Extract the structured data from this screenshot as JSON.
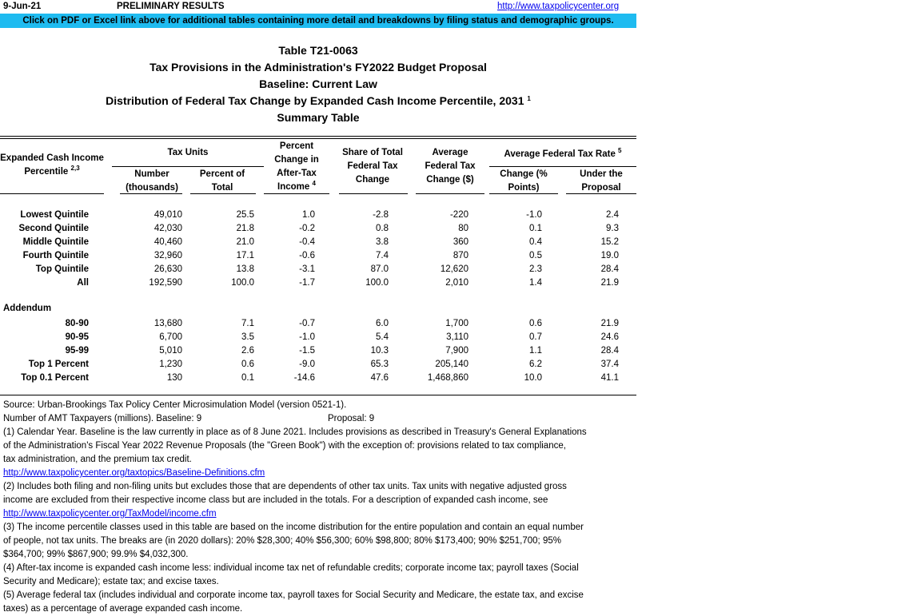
{
  "header": {
    "date": "9-Jun-21",
    "status": "PRELIMINARY RESULTS",
    "link": "http://www.taxpolicycenter.org"
  },
  "banner": "Click on PDF or Excel link above for additional tables containing more detail and breakdowns by filing status and demographic groups.",
  "titles": {
    "t1": "Table T21-0063",
    "t2": "Tax Provisions in the Administration's FY2022 Budget Proposal",
    "t3": "Baseline: Current Law",
    "t4": "Distribution of Federal Tax Change by Expanded Cash Income Percentile, 2031",
    "t4_sup": "1",
    "t5": "Summary Table"
  },
  "columns": {
    "percentile": "Expanded Cash Income",
    "percentile2": "Percentile",
    "percentile_sup": "2,3",
    "tax_units": "Tax Units",
    "number1": "Number",
    "number2": "(thousands)",
    "pct1": "Percent of",
    "pct2": "Total",
    "chg1": "Percent",
    "chg2": "Change in",
    "chg3": "After-Tax",
    "chg4": "Income",
    "chg_sup": "4",
    "share1": "Share of Total",
    "share2": "Federal Tax",
    "share3": "Change",
    "avg1": "Average",
    "avg2": "Federal Tax",
    "avg3": "Change ($)",
    "rate": "Average Federal Tax Rate",
    "rate_sup": "5",
    "rchg1": "Change (%",
    "rchg2": "Points)",
    "under1": "Under the",
    "under2": "Proposal"
  },
  "rows": [
    [
      "Lowest Quintile",
      "49,010",
      "25.5",
      "1.0",
      "-2.8",
      "-220",
      "-1.0",
      "2.4"
    ],
    [
      "Second Quintile",
      "42,030",
      "21.8",
      "-0.2",
      "0.8",
      "80",
      "0.1",
      "9.3"
    ],
    [
      "Middle Quintile",
      "40,460",
      "21.0",
      "-0.4",
      "3.8",
      "360",
      "0.4",
      "15.2"
    ],
    [
      "Fourth Quintile",
      "32,960",
      "17.1",
      "-0.6",
      "7.4",
      "870",
      "0.5",
      "19.0"
    ],
    [
      "Top Quintile",
      "26,630",
      "13.8",
      "-3.1",
      "87.0",
      "12,620",
      "2.3",
      "28.4"
    ],
    [
      "All",
      "192,590",
      "100.0",
      "-1.7",
      "100.0",
      "2,010",
      "1.4",
      "21.9"
    ]
  ],
  "addendum_label": "Addendum",
  "addendum": [
    [
      "80-90",
      "13,680",
      "7.1",
      "-0.7",
      "6.0",
      "1,700",
      "0.6",
      "21.9"
    ],
    [
      "90-95",
      "6,700",
      "3.5",
      "-1.0",
      "5.4",
      "3,110",
      "0.7",
      "24.6"
    ],
    [
      "95-99",
      "5,010",
      "2.6",
      "-1.5",
      "10.3",
      "7,900",
      "1.1",
      "28.4"
    ],
    [
      "Top 1 Percent",
      "1,230",
      "0.6",
      "-9.0",
      "65.3",
      "205,140",
      "6.2",
      "37.4"
    ],
    [
      "Top 0.1 Percent",
      "130",
      "0.1",
      "-14.6",
      "47.6",
      "1,468,860",
      "10.0",
      "41.1"
    ]
  ],
  "footnotes": [
    {
      "text": "Source: Urban-Brookings Tax Policy Center Microsimulation Model (version 0521-1)."
    },
    {
      "text": "Number of AMT Taxpayers (millions).  Baseline: 9",
      "text2": "Proposal: 9"
    },
    {
      "text": "(1) Calendar Year. Baseline is the law currently in place as of 8 June 2021. Includes provisions as described in Treasury's General Explanations"
    },
    {
      "text": "of the Administration's Fiscal Year 2022 Revenue Proposals (the \"Green Book\") with the exception of: provisions related to tax compliance,"
    },
    {
      "text": "tax administration, and the premium tax credit."
    },
    {
      "link": "http://www.taxpolicycenter.org/taxtopics/Baseline-Definitions.cfm"
    },
    {
      "text": "(2) Includes both filing and non-filing units but excludes those that are dependents of other tax units. Tax units with negative adjusted gross"
    },
    {
      "text": "income are excluded from their respective income class but are included in the totals. For a description of expanded cash income, see"
    },
    {
      "link": "http://www.taxpolicycenter.org/TaxModel/income.cfm"
    },
    {
      "text": "(3) The income percentile classes used in this table are based on the income distribution for the entire population and contain an equal number"
    },
    {
      "text": "of people, not tax units. The breaks are (in 2020 dollars): 20% $28,300; 40% $56,300; 60% $98,800; 80% $173,400; 90% $251,700; 95%"
    },
    {
      "text": "$364,700; 99% $867,900; 99.9% $4,032,300."
    },
    {
      "text": "(4) After-tax income is expanded cash income less: individual income tax net of refundable credits; corporate income tax; payroll taxes (Social"
    },
    {
      "text": "Security and Medicare); estate tax; and excise taxes."
    },
    {
      "text": "(5) Average federal tax (includes individual and corporate income tax, payroll taxes for Social Security and Medicare, the estate tax, and excise"
    },
    {
      "text": "taxes) as a percentage of average expanded cash income."
    }
  ]
}
